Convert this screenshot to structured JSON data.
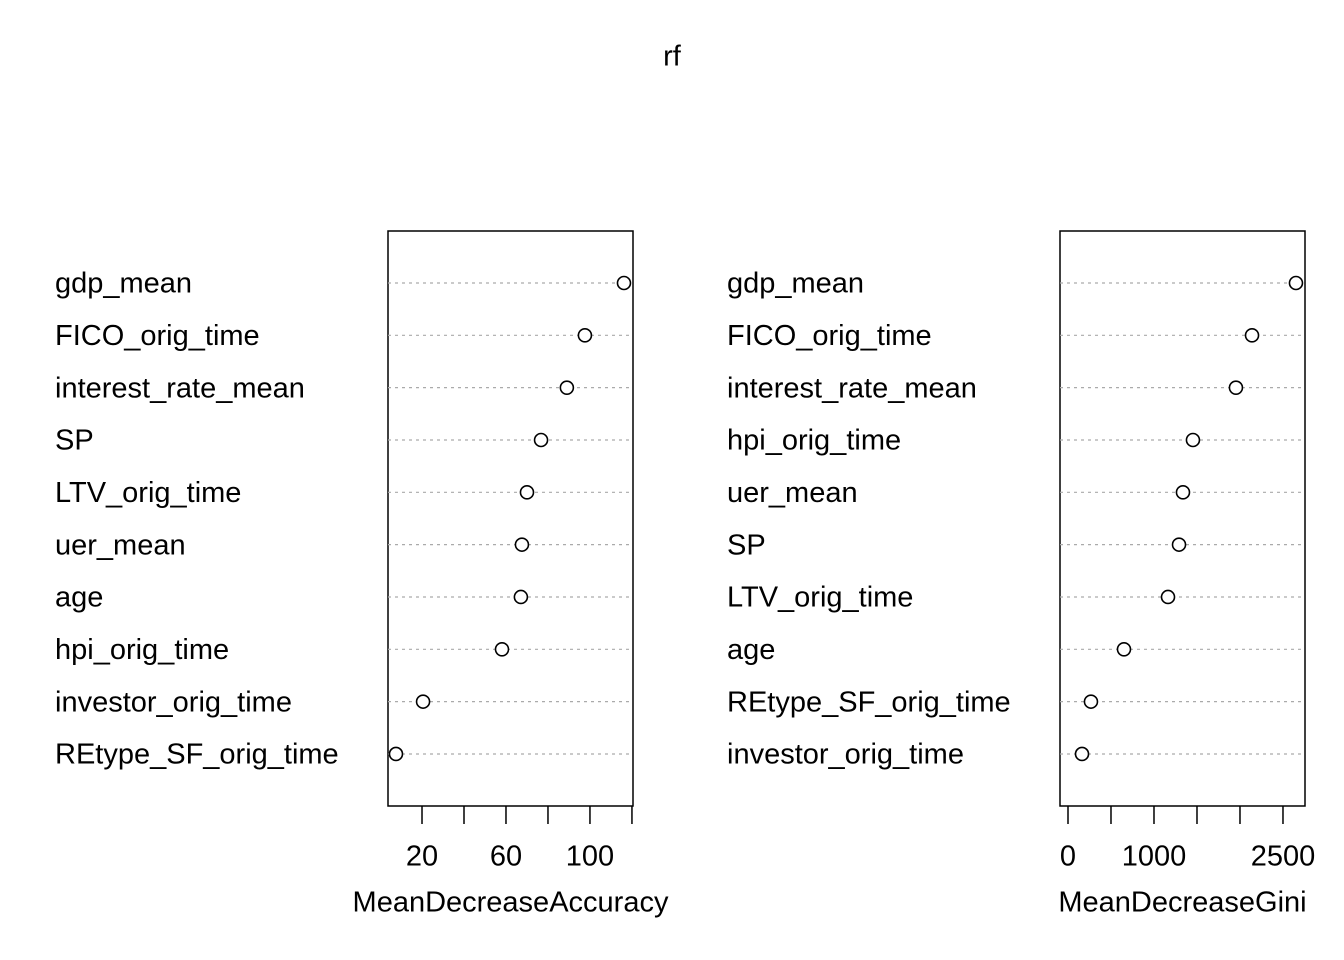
{
  "title": "rf",
  "chart_data": [
    {
      "type": "dotchart",
      "categories": [
        "gdp_mean",
        "FICO_orig_time",
        "interest_rate_mean",
        "SP",
        "LTV_orig_time",
        "uer_mean",
        "age",
        "hpi_orig_time",
        "investor_orig_time",
        "REtype_SF_orig_time"
      ],
      "values": [
        116.2,
        97.6,
        89.0,
        76.7,
        70.0,
        67.6,
        67.1,
        58.1,
        20.5,
        7.6
      ],
      "xlabel": "MeanDecreaseAccuracy",
      "xlim": [
        3.8,
        120.5
      ],
      "xticks": [
        20,
        60,
        100
      ],
      "xminor_ticks": [
        40,
        80,
        120
      ],
      "grid": true,
      "color": "#000000"
    },
    {
      "type": "dotchart",
      "categories": [
        "gdp_mean",
        "FICO_orig_time",
        "interest_rate_mean",
        "hpi_orig_time",
        "uer_mean",
        "SP",
        "LTV_orig_time",
        "age",
        "REtype_SF_orig_time",
        "investor_orig_time"
      ],
      "values": [
        2651,
        2140,
        1953,
        1453,
        1337,
        1291,
        1163,
        651,
        267,
        163
      ],
      "xlabel": "MeanDecreaseGini",
      "xlim": [
        -93,
        2756
      ],
      "xticks": [
        0,
        1000,
        2500
      ],
      "xminor_ticks": [
        500,
        1500,
        2000
      ],
      "grid": true,
      "color": "#000000"
    }
  ]
}
